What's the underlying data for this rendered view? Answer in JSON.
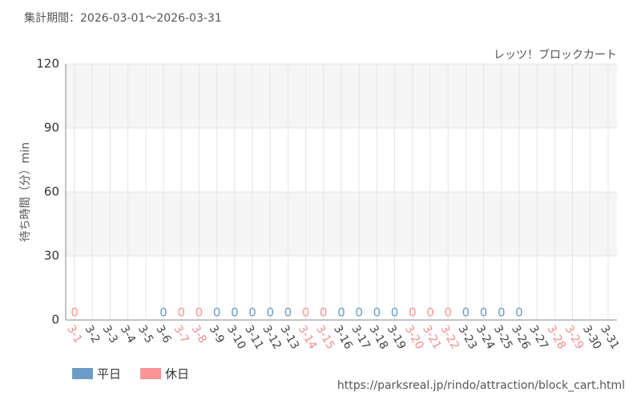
{
  "chart_data": {
    "type": "bar",
    "title": "集計期間：2026-03-01～2026-03-31",
    "subtitle": "レッツ！ブロックカート",
    "y_label": "待ち時間（分）min",
    "source": "https://parksreal.jp/rindo/attraction/block_cart.html",
    "categories": [
      "3-1",
      "3-2",
      "3-3",
      "3-4",
      "3-5",
      "3-6",
      "3-7",
      "3-8",
      "3-9",
      "3-10",
      "3-11",
      "3-12",
      "3-13",
      "3-14",
      "3-15",
      "3-16",
      "3-17",
      "3-18",
      "3-19",
      "3-20",
      "3-21",
      "3-22",
      "3-23",
      "3-24",
      "3-25",
      "3-26",
      "3-27",
      "3-28",
      "3-29",
      "3-30",
      "3-31"
    ],
    "category_colors": [
      "#f08c8c",
      "#444",
      "#444",
      "#444",
      "#444",
      "#444",
      "#f08c8c",
      "#f08c8c",
      "#444",
      "#444",
      "#444",
      "#444",
      "#444",
      "#f08c8c",
      "#f08c8c",
      "#444",
      "#444",
      "#444",
      "#444",
      "#f08c8c",
      "#f08c8c",
      "#f08c8c",
      "#444",
      "#444",
      "#444",
      "#444",
      "#444",
      "#f08c8c",
      "#f08c8c",
      "#444",
      "#444"
    ],
    "series": [
      {
        "name": "平日",
        "color": "#6a9cc6",
        "values": [
          null,
          null,
          null,
          null,
          null,
          0,
          null,
          null,
          0,
          0,
          0,
          0,
          0,
          null,
          null,
          0,
          0,
          0,
          0,
          null,
          null,
          null,
          0,
          0,
          0,
          0,
          null,
          null,
          null,
          null,
          null
        ]
      },
      {
        "name": "休日",
        "color": "#f99595",
        "values": [
          0,
          null,
          null,
          null,
          null,
          null,
          0,
          0,
          null,
          null,
          null,
          null,
          null,
          0,
          0,
          null,
          null,
          null,
          null,
          0,
          0,
          0,
          null,
          null,
          null,
          null,
          null,
          null,
          null,
          null,
          null
        ]
      }
    ],
    "ylim": [
      0,
      120
    ],
    "yticks": [
      0,
      30,
      60,
      90,
      120
    ],
    "grid": true
  }
}
